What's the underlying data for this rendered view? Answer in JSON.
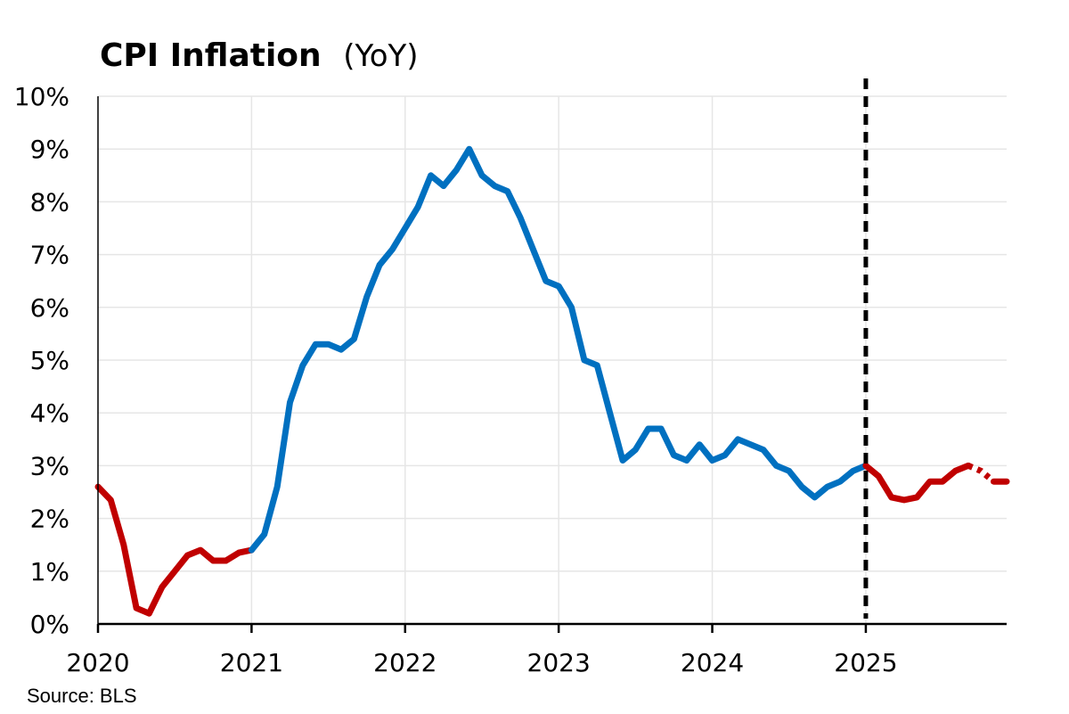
{
  "chart_data": {
    "type": "line",
    "title": "CPI Inflation",
    "subtitle": "(YoY)",
    "source": "Source: BLS",
    "xlabel": "",
    "ylabel": "",
    "x_ticks": [
      "2020",
      "2021",
      "2022",
      "2023",
      "2024",
      "2025"
    ],
    "x_tick_values": [
      2020,
      2021,
      2022,
      2023,
      2024,
      2025
    ],
    "y_ticks": [
      "0%",
      "1%",
      "2%",
      "3%",
      "4%",
      "5%",
      "6%",
      "7%",
      "8%",
      "9%",
      "10%"
    ],
    "y_tick_values": [
      0,
      1,
      2,
      3,
      4,
      5,
      6,
      7,
      8,
      9,
      10
    ],
    "xlim": [
      2020,
      2025.917
    ],
    "ylim": [
      0,
      10
    ],
    "grid": true,
    "reference_line": {
      "x": 2025,
      "style": "dashed",
      "color": "#000000"
    },
    "x": [
      2020,
      2020.083,
      2020.167,
      2020.25,
      2020.333,
      2020.417,
      2020.5,
      2020.583,
      2020.667,
      2020.75,
      2020.833,
      2020.917,
      2021,
      2021.083,
      2021.167,
      2021.25,
      2021.333,
      2021.417,
      2021.5,
      2021.583,
      2021.667,
      2021.75,
      2021.833,
      2021.917,
      2022,
      2022.083,
      2022.167,
      2022.25,
      2022.333,
      2022.417,
      2022.5,
      2022.583,
      2022.667,
      2022.75,
      2022.833,
      2022.917,
      2023,
      2023.083,
      2023.167,
      2023.25,
      2023.333,
      2023.417,
      2023.5,
      2023.583,
      2023.667,
      2023.75,
      2023.833,
      2023.917,
      2024,
      2024.083,
      2024.167,
      2024.25,
      2024.333,
      2024.417,
      2024.5,
      2024.583,
      2024.667,
      2024.75,
      2024.833,
      2024.917,
      2025,
      2025.083,
      2025.167,
      2025.25,
      2025.333,
      2025.417,
      2025.5,
      2025.583,
      2025.667,
      2025.75,
      2025.833,
      2025.917
    ],
    "values": [
      2.6,
      2.35,
      1.5,
      0.3,
      0.2,
      0.7,
      1.0,
      1.3,
      1.4,
      1.2,
      1.2,
      1.35,
      1.4,
      1.7,
      2.6,
      4.2,
      4.9,
      5.3,
      5.3,
      5.2,
      5.4,
      6.2,
      6.8,
      7.1,
      7.5,
      7.9,
      8.5,
      8.3,
      8.6,
      9.0,
      8.5,
      8.3,
      8.2,
      7.7,
      7.1,
      6.5,
      6.4,
      6.0,
      5.0,
      4.9,
      4.0,
      3.1,
      3.3,
      3.7,
      3.7,
      3.2,
      3.1,
      3.4,
      3.1,
      3.2,
      3.5,
      3.4,
      3.3,
      3.0,
      2.9,
      2.6,
      2.4,
      2.6,
      2.7,
      2.9,
      3.0,
      2.8,
      2.4,
      2.35,
      2.4,
      2.7,
      2.7,
      2.9,
      3.0,
      2.9,
      2.7,
      2.7
    ],
    "segments": [
      {
        "color": "#c00000",
        "style": "solid",
        "from": 0,
        "to": 12
      },
      {
        "color": "#0070c0",
        "style": "solid",
        "from": 12,
        "to": 60
      },
      {
        "color": "#c00000",
        "style": "solid",
        "from": 60,
        "to": 68
      },
      {
        "color": "#c00000",
        "style": "dotted",
        "from": 68,
        "to": 70
      },
      {
        "color": "#c00000",
        "style": "solid",
        "from": 70,
        "to": 71
      }
    ],
    "colors": {
      "blue": "#0070c0",
      "red": "#c00000",
      "grid": "#e6e6e6",
      "axis": "#000000"
    }
  }
}
